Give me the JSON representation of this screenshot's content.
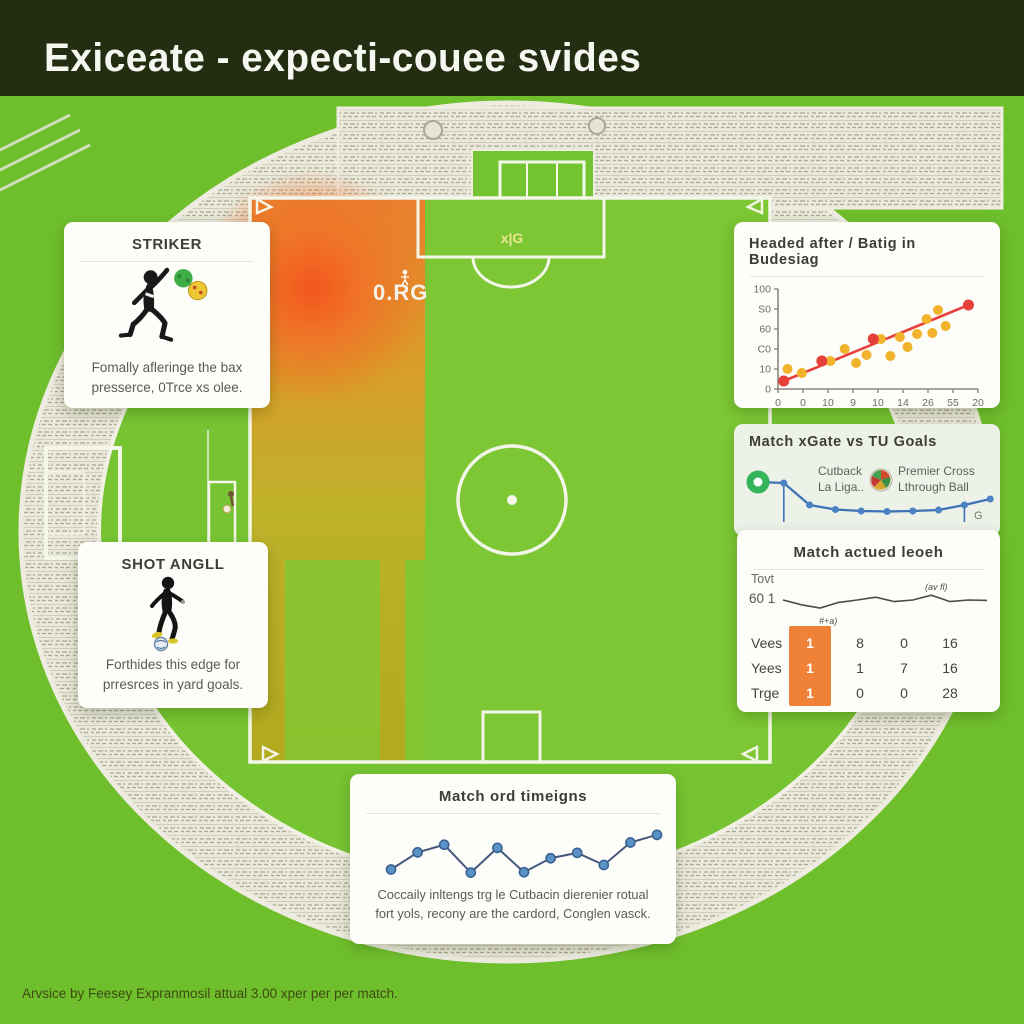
{
  "header": {
    "title": "Exiceate - expecti-couee svides"
  },
  "pitch": {
    "xg_area_label": "x|G",
    "heat_value_label": "0.RG"
  },
  "cards": {
    "striker": {
      "title": "STRIKER",
      "caption_line1": "Fomally afleringe the bax",
      "caption_line2": "presserce, 0Trce xs olee."
    },
    "xg": {
      "corner_label": "G"
    },
    "table": {
      "title": "Match actued leoeh",
      "spark_label_top": "Tovt",
      "spark_label_left": "60 1",
      "note_low": "#+a)",
      "note_high": "(av fl)",
      "rows": [
        {
          "label": "Vees",
          "highlight": "1",
          "c1": "8",
          "c2": "0",
          "c3": "16"
        },
        {
          "label": "Yees",
          "highlight": "1",
          "c1": "1",
          "c2": "7",
          "c3": "16"
        },
        {
          "label": "Trge",
          "highlight": "1",
          "c1": "0",
          "c2": "0",
          "c3": "28"
        }
      ]
    },
    "shot": {
      "title": "SHOT ANGLL",
      "caption_line1": "Forthides this edge for",
      "caption_line2": "prresrces in yard goals."
    },
    "timeline": {
      "caption_line1": "Coccaily inltengs trg le Cutbacin dierenier rotual",
      "caption_line2": "fort yols, recony are the cardord, Conglen vasck."
    }
  },
  "footer": {
    "credit": "Arvsice by Feesey Expranmosil attual 3.00 xper per per match."
  },
  "colors": {
    "header_bg": "#232d12",
    "pitch_green": "#71c12f",
    "card_bg": "#fdfdfa",
    "accent_orange": "#f08238",
    "heat_orange": "#f07428",
    "heat_olive": "#b5a81e",
    "line_blue": "#3e72b4",
    "trend_red": "#e6403a",
    "dot_yellow": "#f0b32b",
    "donut_green": "#35b45c",
    "title_ink": "#3f3d35",
    "muted_ink": "#5c5b52"
  },
  "chart_data": [
    {
      "id": "headed_scatter",
      "type": "scatter",
      "title": "Headed after / Batig in Budesiag",
      "x_tick_labels": [
        "0",
        "0",
        "10",
        "9",
        "10",
        "14",
        "26",
        "55",
        "20"
      ],
      "y_tick_labels": [
        "100",
        "S0",
        "60",
        "C0",
        "10",
        "0"
      ],
      "xlim": [
        0,
        21
      ],
      "ylim": [
        0,
        100
      ],
      "points_yellow": [
        [
          1,
          20
        ],
        [
          2.5,
          16
        ],
        [
          5.5,
          28
        ],
        [
          7,
          40
        ],
        [
          8.2,
          26
        ],
        [
          9.3,
          34
        ],
        [
          10.8,
          50
        ],
        [
          11.8,
          33
        ],
        [
          12.8,
          52
        ],
        [
          13.6,
          42
        ],
        [
          14.6,
          55
        ],
        [
          15.6,
          70
        ],
        [
          16.2,
          56
        ],
        [
          16.8,
          79
        ],
        [
          17.6,
          63
        ]
      ],
      "points_red": [
        [
          0.6,
          8
        ],
        [
          4.6,
          28
        ],
        [
          10,
          50
        ],
        [
          20,
          84
        ]
      ],
      "trend": [
        [
          0.6,
          8
        ],
        [
          20,
          84
        ]
      ],
      "colors": {
        "yellow": "#f0b32b",
        "red": "#e6403a"
      },
      "legend_position": "none",
      "grid": false
    },
    {
      "id": "xg_line",
      "type": "line",
      "title": "Match xGate vs TU Goals",
      "values": [
        72,
        70,
        26,
        17,
        14,
        13,
        14,
        16,
        26,
        38
      ],
      "drops": [
        1,
        8
      ],
      "color": "#3e72b4",
      "legend": [
        {
          "line1": "Cutback",
          "line2": "La Liga.."
        },
        {
          "line1": "Premier Cross",
          "line2": "Lthrough Ball"
        }
      ],
      "grid": false
    },
    {
      "id": "match_spark",
      "type": "line",
      "title": "Match actued leoeh",
      "values": [
        50,
        38,
        30,
        44,
        50,
        57,
        46,
        50,
        62,
        46,
        50,
        49
      ],
      "color": "#4c4c44",
      "grid": false
    },
    {
      "id": "timeline",
      "type": "line",
      "title": "Match ord timeigns",
      "values": [
        10,
        48,
        65,
        3,
        58,
        4,
        35,
        47,
        20,
        70,
        87
      ],
      "color": "#44587c",
      "dot_color": "#5b92c6",
      "grid": false
    }
  ]
}
